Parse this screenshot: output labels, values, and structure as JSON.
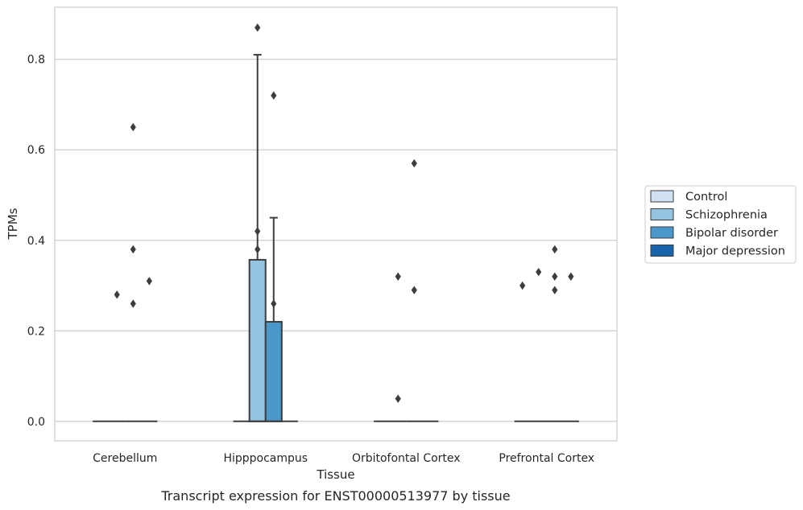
{
  "chart_data": {
    "type": "box",
    "xlabel": "Tissue",
    "ylabel": "TPMs",
    "caption": "Transcript expression for ENST00000513977 by tissue",
    "ylim": [
      -0.043,
      0.915
    ],
    "yticks": [
      "0.0",
      "0.2",
      "0.4",
      "0.6",
      "0.8"
    ],
    "ytick_values": [
      0.0,
      0.2,
      0.4,
      0.6,
      0.8
    ],
    "grid": "horizontal",
    "legend_position": "right",
    "categories": [
      "Cerebellum",
      "Hipppocampus",
      "Orbitofontal Cortex",
      "Prefrontal Cortex"
    ],
    "series": [
      {
        "name": "Control",
        "color": "#d0e1f2"
      },
      {
        "name": "Schizophrenia",
        "color": "#94c4df"
      },
      {
        "name": "Bipolar disorder",
        "color": "#4a98c9"
      },
      {
        "name": "Major depression",
        "color": "#1764ab"
      }
    ],
    "boxes": [
      {
        "category": 0,
        "series": 0,
        "q1": 0,
        "median": 0,
        "q3": 0,
        "whislo": 0,
        "whishi": 0,
        "fliers": []
      },
      {
        "category": 0,
        "series": 1,
        "q1": 0,
        "median": 0,
        "q3": 0,
        "whislo": 0,
        "whishi": 0,
        "fliers": [
          0.28
        ]
      },
      {
        "category": 0,
        "series": 2,
        "q1": 0,
        "median": 0,
        "q3": 0,
        "whislo": 0,
        "whishi": 0,
        "fliers": [
          0.65,
          0.38,
          0.26
        ]
      },
      {
        "category": 0,
        "series": 3,
        "q1": 0,
        "median": 0,
        "q3": 0,
        "whislo": 0,
        "whishi": 0,
        "fliers": [
          0.31
        ]
      },
      {
        "category": 1,
        "series": 0,
        "q1": 0,
        "median": 0,
        "q3": 0,
        "whislo": 0,
        "whishi": 0,
        "fliers": []
      },
      {
        "category": 1,
        "series": 1,
        "q1": 0,
        "median": 0,
        "q3": 0.357,
        "whislo": 0,
        "whishi": 0.81,
        "fliers": [
          0.87,
          0.42,
          0.38
        ]
      },
      {
        "category": 1,
        "series": 2,
        "q1": 0,
        "median": 0,
        "q3": 0.22,
        "whislo": 0,
        "whishi": 0.45,
        "fliers": [
          0.72,
          0.26
        ]
      },
      {
        "category": 1,
        "series": 3,
        "q1": 0,
        "median": 0,
        "q3": 0,
        "whislo": 0,
        "whishi": 0,
        "fliers": []
      },
      {
        "category": 2,
        "series": 0,
        "q1": 0,
        "median": 0,
        "q3": 0,
        "whislo": 0,
        "whishi": 0,
        "fliers": []
      },
      {
        "category": 2,
        "series": 1,
        "q1": 0,
        "median": 0,
        "q3": 0,
        "whislo": 0,
        "whishi": 0,
        "fliers": [
          0.32,
          0.05
        ]
      },
      {
        "category": 2,
        "series": 2,
        "q1": 0,
        "median": 0,
        "q3": 0,
        "whislo": 0,
        "whishi": 0,
        "fliers": [
          0.57,
          0.29
        ]
      },
      {
        "category": 2,
        "series": 3,
        "q1": 0,
        "median": 0,
        "q3": 0,
        "whislo": 0,
        "whishi": 0,
        "fliers": []
      },
      {
        "category": 3,
        "series": 0,
        "q1": 0,
        "median": 0,
        "q3": 0,
        "whislo": 0,
        "whishi": 0,
        "fliers": [
          0.3
        ]
      },
      {
        "category": 3,
        "series": 1,
        "q1": 0,
        "median": 0,
        "q3": 0,
        "whislo": 0,
        "whishi": 0,
        "fliers": [
          0.33
        ]
      },
      {
        "category": 3,
        "series": 2,
        "q1": 0,
        "median": 0,
        "q3": 0,
        "whislo": 0,
        "whishi": 0,
        "fliers": [
          0.38,
          0.32,
          0.29
        ]
      },
      {
        "category": 3,
        "series": 3,
        "q1": 0,
        "median": 0,
        "q3": 0,
        "whislo": 0,
        "whishi": 0,
        "fliers": [
          0.32
        ]
      }
    ]
  }
}
